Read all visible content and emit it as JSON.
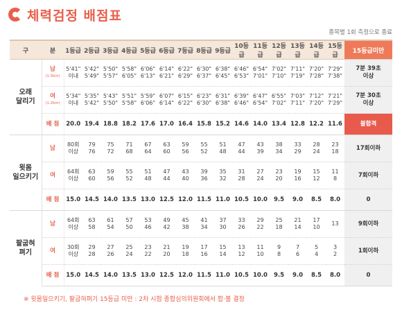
{
  "title": "체력검정 배점표",
  "note": "종목별 1회 측정으로 종료",
  "header": {
    "col1": "구",
    "col2": "분",
    "grades": [
      "1등급",
      "2등급",
      "3등급",
      "4등급",
      "5등급",
      "6등급",
      "7등급",
      "8등급",
      "9등급",
      "10등급",
      "11등급",
      "12등급",
      "13등급",
      "14등급",
      "15등급"
    ],
    "last": "15등급미만"
  },
  "events": [
    {
      "name": "오래\n달리기",
      "rows": [
        {
          "label": "남",
          "sublabel": "(1.5km)",
          "cells": [
            [
              "5'41\"",
              "이내"
            ],
            [
              "5'42\"",
              "5'49\""
            ],
            [
              "5'50\"",
              "5'57\""
            ],
            [
              "5'58\"",
              "6'05\""
            ],
            [
              "6'06\"",
              "6'13\""
            ],
            [
              "6'14\"",
              "6'21\""
            ],
            [
              "6'22\"",
              "6'29\""
            ],
            [
              "6'30\"",
              "6'37\""
            ],
            [
              "6'38\"",
              "6'45\""
            ],
            [
              "6'46\"",
              "6'53\""
            ],
            [
              "6'54\"",
              "7'01\""
            ],
            [
              "7'02\"",
              "7'10\""
            ],
            [
              "7'11\"",
              "7'19\""
            ],
            [
              "7'20\"",
              "7'28\""
            ],
            [
              "7'29\"",
              "7'38\""
            ]
          ],
          "last": [
            "7분 39초",
            "이상"
          ],
          "fail": false
        },
        {
          "label": "여",
          "sublabel": "(1.2km)",
          "cells": [
            [
              "5'34\"",
              "이내"
            ],
            [
              "5'35\"",
              "5'42\""
            ],
            [
              "5'43\"",
              "5'50\""
            ],
            [
              "5'51\"",
              "5'58\""
            ],
            [
              "5'59\"",
              "6'06\""
            ],
            [
              "6'07\"",
              "6'14\""
            ],
            [
              "6'15\"",
              "6'22\""
            ],
            [
              "6'23\"",
              "6'30\""
            ],
            [
              "6'31\"",
              "6'38\""
            ],
            [
              "6'39\"",
              "6'46\""
            ],
            [
              "6'47\"",
              "6'54\""
            ],
            [
              "6'55\"",
              "7'02\""
            ],
            [
              "7'03\"",
              "7'11\""
            ],
            [
              "7'12\"",
              "7'20\""
            ],
            [
              "7'21\"",
              "7'29\""
            ]
          ],
          "last": [
            "7분 30초",
            "이상"
          ],
          "fail": false
        }
      ],
      "score_label": "배 점",
      "scores": [
        "20.0",
        "19.4",
        "18.8",
        "18.2",
        "17.6",
        "17.0",
        "16.4",
        "15.8",
        "15.2",
        "14.6",
        "14.0",
        "13.4",
        "12.8",
        "12.2",
        "11.6"
      ],
      "score_last": "불합격",
      "score_fail": true
    },
    {
      "name": "윗몸\n일으키기",
      "rows": [
        {
          "label": "남",
          "sublabel": "",
          "cells": [
            [
              "80회",
              "이상"
            ],
            [
              "79",
              "76"
            ],
            [
              "75",
              "72"
            ],
            [
              "71",
              "68"
            ],
            [
              "67",
              "64"
            ],
            [
              "63",
              "60"
            ],
            [
              "59",
              "56"
            ],
            [
              "55",
              "52"
            ],
            [
              "51",
              "48"
            ],
            [
              "47",
              "44"
            ],
            [
              "43",
              "39"
            ],
            [
              "38",
              "34"
            ],
            [
              "33",
              "29"
            ],
            [
              "28",
              "24"
            ],
            [
              "23",
              "18"
            ]
          ],
          "last": [
            "17회이하",
            ""
          ],
          "fail": false
        },
        {
          "label": "여",
          "sublabel": "",
          "cells": [
            [
              "64회",
              "이상"
            ],
            [
              "63",
              "60"
            ],
            [
              "59",
              "56"
            ],
            [
              "55",
              "52"
            ],
            [
              "51",
              "48"
            ],
            [
              "47",
              "44"
            ],
            [
              "43",
              "40"
            ],
            [
              "39",
              "36"
            ],
            [
              "35",
              "32"
            ],
            [
              "31",
              "28"
            ],
            [
              "27",
              "24"
            ],
            [
              "23",
              "20"
            ],
            [
              "19",
              "16"
            ],
            [
              "15",
              "12"
            ],
            [
              "11",
              "8"
            ]
          ],
          "last": [
            "7회이하",
            ""
          ],
          "fail": false
        }
      ],
      "score_label": "배 점",
      "scores": [
        "15.0",
        "14.5",
        "14.0",
        "13.5",
        "13.0",
        "12.5",
        "12.0",
        "11.5",
        "11.0",
        "10.5",
        "10.0",
        "9.5",
        "9.0",
        "8.5",
        "8.0"
      ],
      "score_last": "0",
      "score_fail": false
    },
    {
      "name": "팔굽혀\n펴기",
      "rows": [
        {
          "label": "남",
          "sublabel": "",
          "cells": [
            [
              "64회",
              "이상"
            ],
            [
              "63",
              "58"
            ],
            [
              "61",
              "54"
            ],
            [
              "57",
              "50"
            ],
            [
              "53",
              "46"
            ],
            [
              "49",
              "42"
            ],
            [
              "45",
              "38"
            ],
            [
              "41",
              "34"
            ],
            [
              "37",
              "30"
            ],
            [
              "33",
              "26"
            ],
            [
              "29",
              "22"
            ],
            [
              "25",
              "18"
            ],
            [
              "21",
              "14"
            ],
            [
              "17",
              "10"
            ],
            [
              "13",
              ""
            ]
          ],
          "last": [
            "9회이하",
            ""
          ],
          "fail": false
        },
        {
          "label": "여",
          "sublabel": "",
          "cells": [
            [
              "30회",
              "이상"
            ],
            [
              "29",
              "28"
            ],
            [
              "27",
              "26"
            ],
            [
              "25",
              "24"
            ],
            [
              "23",
              "22"
            ],
            [
              "21",
              "20"
            ],
            [
              "19",
              "18"
            ],
            [
              "17",
              "16"
            ],
            [
              "15",
              "14"
            ],
            [
              "13",
              "12"
            ],
            [
              "11",
              "10"
            ],
            [
              "9",
              "8"
            ],
            [
              "7",
              "6"
            ],
            [
              "5",
              "4"
            ],
            [
              "3",
              "2"
            ]
          ],
          "last": [
            "1회이하",
            ""
          ],
          "fail": false
        }
      ],
      "score_label": "배 점",
      "scores": [
        "15.0",
        "14.5",
        "14.0",
        "13.5",
        "13.0",
        "12.5",
        "12.0",
        "11.5",
        "11.0",
        "10.5",
        "10.0",
        "9.5",
        "9.0",
        "8.5",
        "8.0"
      ],
      "score_last": "0",
      "score_fail": false
    }
  ],
  "footnote": "※ 윗몸일으키기, 팔굽혀펴기 15등급 미만 : 2차 시험 종합심의위원회에서 합·불 결정"
}
